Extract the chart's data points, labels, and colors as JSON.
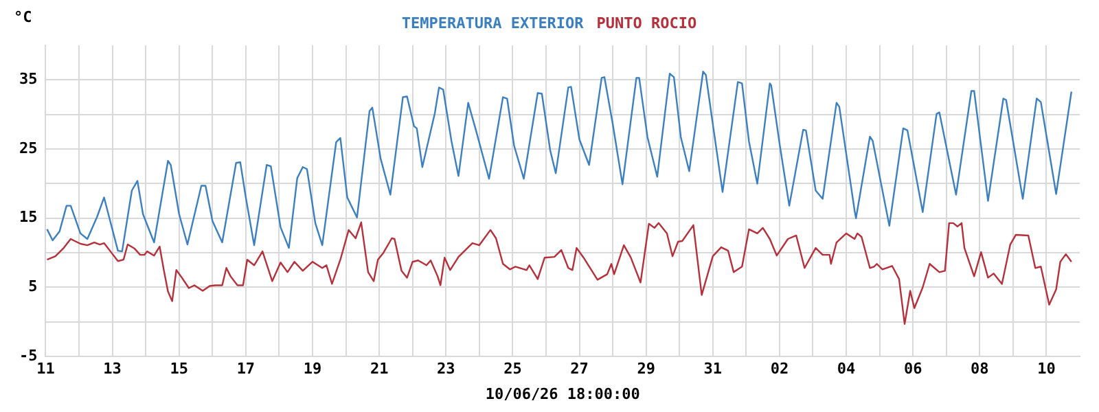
{
  "chart_data": {
    "type": "line",
    "ylabel": "°C",
    "xlabel": "10/06/26 18:00:00",
    "legend": "top",
    "grid": true,
    "marker": "none",
    "line_style": "solid",
    "xlim": [
      "--05-11",
      "--06-11"
    ],
    "xticks": [
      {
        "value": "--05-11",
        "label": "11"
      },
      {
        "value": "--05-12",
        "label": null
      },
      {
        "value": "--05-13",
        "label": "13"
      },
      {
        "value": "--05-14",
        "label": null
      },
      {
        "value": "--05-15",
        "label": "15"
      },
      {
        "value": "--05-16",
        "label": null
      },
      {
        "value": "--05-17",
        "label": "17"
      },
      {
        "value": "--05-18",
        "label": null
      },
      {
        "value": "--05-19",
        "label": "19"
      },
      {
        "value": "--05-20",
        "label": null
      },
      {
        "value": "--05-21",
        "label": "21"
      },
      {
        "value": "--05-22",
        "label": null
      },
      {
        "value": "--05-23",
        "label": "23"
      },
      {
        "value": "--05-24",
        "label": null
      },
      {
        "value": "--05-25",
        "label": "25"
      },
      {
        "value": "--05-26",
        "label": null
      },
      {
        "value": "--05-27",
        "label": "27"
      },
      {
        "value": "--05-28",
        "label": null
      },
      {
        "value": "--05-29",
        "label": "29"
      },
      {
        "value": "--05-30",
        "label": null
      },
      {
        "value": "--05-31",
        "label": "31"
      },
      {
        "value": "--06-01",
        "label": null
      },
      {
        "value": "--06-02",
        "label": "02"
      },
      {
        "value": "--06-03",
        "label": null
      },
      {
        "value": "--06-04",
        "label": "04"
      },
      {
        "value": "--06-05",
        "label": null
      },
      {
        "value": "--06-06",
        "label": "06"
      },
      {
        "value": "--06-07",
        "label": null
      },
      {
        "value": "--06-08",
        "label": "08"
      },
      {
        "value": "--06-09",
        "label": null
      },
      {
        "value": "--06-10",
        "label": "10"
      }
    ],
    "ylim": [
      -5,
      40
    ],
    "yticks": [
      -5,
      {
        "value": 0,
        "label": null
      },
      5,
      {
        "value": 10,
        "label": null
      },
      15,
      {
        "value": 20,
        "label": null
      },
      25,
      {
        "value": 30,
        "label": null
      },
      35
    ],
    "series": [
      {
        "name": "TEMPERATURA EXTERIOR",
        "color": "#3a7fc0",
        "x": [
          "--05-11T01:00",
          "--05-11T05:00",
          "--05-11T10:00",
          "--05-11T15:00",
          "--05-11T18:00",
          "--05-12T01:00",
          "--05-12T06:00",
          "--05-12T13:00",
          "--05-12T18:00",
          "--05-12T22:00",
          "--05-13T04:00",
          "--05-13T07:00",
          "--05-13T14:00",
          "--05-13T18:00",
          "--05-13T22:00",
          "--05-14T06:00",
          "--05-14T16:00",
          "--05-14T18:00",
          "--05-15T00:00",
          "--05-15T06:00",
          "--05-15T16:00",
          "--05-15T19:00",
          "--05-16T00:00",
          "--05-16T07:00",
          "--05-16T17:00",
          "--05-16T20:00",
          "--05-17T00:00",
          "--05-17T06:00",
          "--05-17T15:00",
          "--05-17T18:00",
          "--05-18T01:00",
          "--05-18T07:00",
          "--05-18T13:00",
          "--05-18T17:00",
          "--05-18T20:00",
          "--05-19T02:00",
          "--05-19T07:00",
          "--05-19T17:00",
          "--05-19T20:00",
          "--05-20T01:00",
          "--05-20T08:00",
          "--05-20T17:00",
          "--05-20T19:00",
          "--05-21T01:00",
          "--05-21T08:00",
          "--05-21T17:00",
          "--05-21T20:00",
          "--05-22T01:00",
          "--05-22T03:00",
          "--05-22T07:00",
          "--05-22T16:00",
          "--05-22T19:00",
          "--05-22T22:00",
          "--05-23T04:00",
          "--05-23T09:00",
          "--05-23T16:00",
          "--05-23T22:00",
          "--05-24T07:00",
          "--05-24T17:00",
          "--05-24T20:00",
          "--05-25T01:00",
          "--05-25T08:00",
          "--05-25T18:00",
          "--05-25T21:00",
          "--05-26T03:00",
          "--05-26T07:00",
          "--05-26T16:00",
          "--05-26T18:00",
          "--05-27T00:00",
          "--05-27T07:00",
          "--05-27T16:00",
          "--05-27T18:00",
          "--05-28T00:00",
          "--05-28T07:00",
          "--05-28T17:00",
          "--05-28T19:00",
          "--05-29T01:00",
          "--05-29T08:00",
          "--05-29T17:00",
          "--05-29T20:00",
          "--05-30T01:00",
          "--05-30T07:00",
          "--05-30T17:00",
          "--05-30T19:00",
          "--05-31T00:00",
          "--05-31T07:00",
          "--05-31T18:00",
          "--05-31T21:00",
          "--06-01T02:00",
          "--06-01T08:00",
          "--06-01T17:00",
          "--06-01T18:00",
          "--06-02T00:00",
          "--06-02T07:00",
          "--06-02T17:00",
          "--06-02T19:00",
          "--06-03T02:00",
          "--06-03T07:00",
          "--06-03T17:00",
          "--06-03T19:00",
          "--06-04T06:00",
          "--06-04T07:00",
          "--06-04T17:00",
          "--06-04T19:00",
          "--06-05T07:00",
          "--06-05T17:00",
          "--06-05T20:00",
          "--06-06T07:00",
          "--06-06T17:00",
          "--06-06T19:00",
          "--06-07T07:00",
          "--06-07T18:00",
          "--06-07T20:00",
          "--06-08T06:00",
          "--06-08T17:00",
          "--06-08T19:00",
          "--06-09T07:00",
          "--06-09T17:00",
          "--06-09T20:00",
          "--06-10T07:00",
          "--06-10T18:00"
        ],
        "values": [
          13.4,
          11.8,
          13.1,
          16.8,
          16.8,
          12.8,
          12.0,
          15.2,
          18.0,
          14.9,
          10.3,
          10.2,
          19.0,
          20.4,
          15.6,
          11.5,
          23.3,
          22.7,
          15.6,
          11.2,
          19.7,
          19.7,
          14.6,
          11.5,
          23.0,
          23.1,
          18.0,
          11.1,
          22.7,
          22.5,
          13.7,
          10.7,
          20.8,
          22.4,
          22.1,
          14.3,
          11.1,
          26.0,
          26.6,
          18.0,
          15.1,
          30.5,
          31.0,
          23.6,
          18.4,
          32.5,
          32.6,
          28.3,
          28.0,
          22.4,
          30.2,
          33.9,
          33.6,
          26.1,
          21.1,
          31.7,
          27.4,
          20.7,
          32.5,
          32.3,
          25.5,
          20.7,
          33.1,
          33.0,
          24.8,
          21.5,
          33.9,
          34.0,
          26.4,
          22.7,
          35.3,
          35.4,
          28.6,
          19.9,
          35.3,
          35.3,
          26.7,
          21.0,
          35.9,
          35.4,
          26.7,
          21.8,
          36.2,
          35.7,
          28.6,
          18.8,
          34.7,
          34.5,
          26.1,
          20.0,
          34.5,
          34.2,
          25.8,
          16.8,
          27.8,
          27.7,
          19.0,
          17.8,
          31.7,
          31.1,
          16.1,
          15.0,
          26.8,
          26.2,
          13.9,
          28.0,
          27.7,
          15.9,
          30.1,
          30.3,
          18.4,
          33.4,
          33.4,
          17.5,
          32.3,
          32.1,
          17.8,
          32.3,
          31.8,
          18.5,
          33.3
        ]
      },
      {
        "name": "PUNTO ROCIO",
        "color": "#b5303a",
        "x": [
          "--05-11T01:00",
          "--05-11T07:00",
          "--05-11T13:00",
          "--05-11T18:00",
          "--05-12T01:00",
          "--05-12T06:00",
          "--05-12T11:00",
          "--05-12T15:00",
          "--05-12T18:00",
          "--05-12T23:00",
          "--05-13T04:00",
          "--05-13T08:00",
          "--05-13T11:00",
          "--05-13T16:00",
          "--05-13T20:00",
          "--05-13T23:00",
          "--05-14T01:00",
          "--05-14T06:00",
          "--05-14T10:00",
          "--05-14T13:00",
          "--05-14T16:00",
          "--05-14T19:00",
          "--05-14T22:00",
          "--05-15T02:00",
          "--05-15T07:00",
          "--05-15T11:00",
          "--05-15T17:00",
          "--05-15T22:00",
          "--05-16T02:00",
          "--05-16T07:00",
          "--05-16T10:00",
          "--05-16T13:00",
          "--05-16T18:00",
          "--05-16T22:00",
          "--05-17T01:00",
          "--05-17T06:00",
          "--05-17T12:00",
          "--05-17T19:00",
          "--05-18T01:00",
          "--05-18T06:00",
          "--05-18T11:00",
          "--05-18T17:00",
          "--05-19T00:00",
          "--05-19T07:00",
          "--05-19T10:00",
          "--05-19T14:00",
          "--05-19T20:00",
          "--05-20T02:00",
          "--05-20T07:00",
          "--05-20T11:00",
          "--05-20T16:00",
          "--05-20T20:00",
          "--05-20T23:00",
          "--05-21T03:00",
          "--05-21T09:00",
          "--05-21T11:00",
          "--05-21T16:00",
          "--05-21T20:00",
          "--05-22T00:00",
          "--05-22T04:00",
          "--05-22T10:00",
          "--05-22T13:00",
          "--05-22T18:00",
          "--05-22T20:00",
          "--05-22T23:00",
          "--05-23T03:00",
          "--05-23T09:00",
          "--05-23T19:00",
          "--05-24T00:00",
          "--05-24T08:00",
          "--05-24T12:00",
          "--05-24T17:00",
          "--05-24T22:00",
          "--05-25T02:00",
          "--05-25T10:00",
          "--05-25T12:00",
          "--05-25T18:00",
          "--05-25T23:00",
          "--05-26T06:00",
          "--05-26T11:00",
          "--05-26T16:00",
          "--05-26T19:00",
          "--05-26T22:00",
          "--05-27T03:00",
          "--05-27T13:00",
          "--05-27T20:00",
          "--05-27T23:00",
          "--05-28T01:00",
          "--05-28T08:00",
          "--05-28T13:00",
          "--05-28T20:00",
          "--05-29T02:00",
          "--05-29T06:00",
          "--05-29T09:00",
          "--05-29T15:00",
          "--05-29T19:00",
          "--05-29T23:00",
          "--05-30T02:00",
          "--05-30T10:00",
          "--05-30T16:00",
          "--05-31T00:00",
          "--05-31T06:00",
          "--05-31T11:00",
          "--05-31T15:00",
          "--05-31T21:00",
          "--06-01T02:00",
          "--06-01T08:00",
          "--06-01T12:00",
          "--06-01T17:00",
          "--06-01T22:00",
          "--06-02T06:00",
          "--06-02T12:00",
          "--06-02T18:00",
          "--06-03T02:00",
          "--06-03T07:00",
          "--06-03T12:00",
          "--06-03T13:00",
          "--06-03T17:00",
          "--06-04T00:00",
          "--06-04T06:00",
          "--06-04T08:00",
          "--06-04T11:00",
          "--06-04T17:00",
          "--06-04T20:00",
          "--06-04T22:00",
          "--06-05T02:00",
          "--06-05T09:00",
          "--06-05T14:00",
          "--06-05T18:00",
          "--06-05T22:00",
          "--06-06T01:00",
          "--06-06T07:00",
          "--06-06T12:00",
          "--06-06T19:00",
          "--06-06T23:00",
          "--06-07T02:00",
          "--06-07T05:00",
          "--06-07T08:00",
          "--06-07T11:00",
          "--06-07T13:00",
          "--06-07T20:00",
          "--06-08T01:00",
          "--06-08T06:00",
          "--06-08T10:00",
          "--06-08T16:00",
          "--06-08T22:00",
          "--06-09T02:00",
          "--06-09T11:00",
          "--06-09T16:00",
          "--06-09T20:00",
          "--06-10T02:00",
          "--06-10T07:00",
          "--06-10T10:00",
          "--06-10T14:00",
          "--06-10T18:00"
        ],
        "values": [
          9.0,
          9.5,
          10.7,
          12.0,
          11.3,
          11.1,
          11.5,
          11.2,
          11.4,
          10.1,
          8.8,
          9.0,
          11.2,
          10.6,
          9.7,
          9.7,
          10.2,
          9.6,
          10.9,
          7.5,
          4.4,
          3.0,
          7.5,
          6.4,
          4.9,
          5.3,
          4.5,
          5.2,
          5.3,
          5.3,
          7.8,
          6.6,
          5.3,
          5.3,
          9.0,
          8.2,
          10.2,
          5.9,
          8.6,
          7.2,
          8.7,
          7.4,
          8.7,
          7.8,
          8.2,
          5.5,
          9.0,
          13.3,
          12.1,
          14.4,
          7.2,
          5.9,
          9.0,
          10.0,
          12.1,
          12.0,
          7.4,
          6.4,
          8.7,
          8.9,
          8.2,
          8.9,
          6.6,
          5.3,
          9.3,
          7.5,
          9.4,
          11.4,
          11.1,
          13.3,
          12.1,
          8.4,
          7.6,
          8.0,
          7.5,
          8.2,
          6.2,
          9.3,
          9.4,
          10.4,
          7.8,
          7.5,
          10.7,
          9.3,
          6.1,
          6.9,
          8.4,
          6.9,
          11.1,
          9.3,
          5.7,
          14.2,
          13.6,
          14.3,
          12.8,
          9.5,
          11.6,
          11.7,
          14.0,
          3.9,
          9.5,
          10.8,
          10.3,
          7.2,
          8.0,
          13.4,
          12.8,
          13.6,
          12.0,
          9.6,
          12.0,
          12.5,
          7.8,
          10.7,
          9.7,
          9.7,
          8.4,
          11.5,
          12.8,
          12.0,
          12.8,
          12.3,
          7.8,
          8.0,
          8.4,
          7.6,
          8.1,
          6.2,
          -0.3,
          4.5,
          2.0,
          5.0,
          8.4,
          7.2,
          7.4,
          14.3,
          14.3,
          13.8,
          14.3,
          10.7,
          6.6,
          10.1,
          6.4,
          7.0,
          5.5,
          11.2,
          12.6,
          12.5,
          7.8,
          8.0,
          2.5,
          4.7,
          8.7,
          9.8,
          8.7
        ]
      }
    ]
  }
}
